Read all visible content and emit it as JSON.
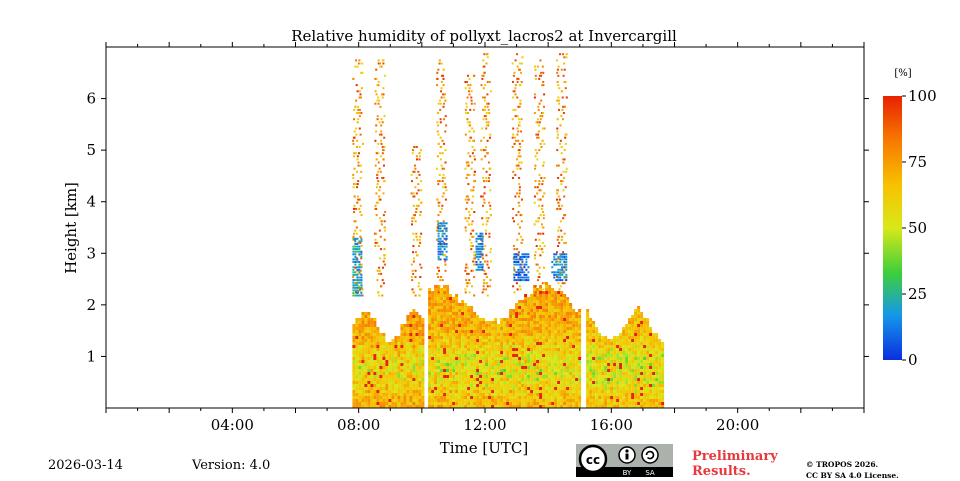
{
  "chart_data": {
    "type": "heatmap",
    "title": "Relative humidity of pollyxt_lacros2 at Invercargill",
    "xlabel": "Time [UTC]",
    "ylabel": "Height [km]",
    "xlim": [
      0,
      24
    ],
    "ylim": [
      0,
      7
    ],
    "x_ticks": [
      4,
      8,
      12,
      16,
      20
    ],
    "x_tick_labels": [
      "04:00",
      "08:00",
      "12:00",
      "16:00",
      "20:00"
    ],
    "y_ticks": [
      1,
      2,
      3,
      4,
      5,
      6
    ],
    "y_tick_labels": [
      "1",
      "2",
      "3",
      "4",
      "5",
      "6"
    ],
    "colorbar": {
      "label": "[%]",
      "range": [
        0,
        100
      ],
      "ticks": [
        0,
        25,
        50,
        75,
        100
      ],
      "tick_labels": [
        "0",
        "25",
        "50",
        "75",
        "100"
      ],
      "colors": [
        "#0a2ee0",
        "#1598e8",
        "#3ecf3a",
        "#d8e81a",
        "#f7c200",
        "#f77a00",
        "#e82200"
      ]
    },
    "data_regions": [
      {
        "t_start": 7.8,
        "t_end": 10.0,
        "top_km": 2.0,
        "rh": 75
      },
      {
        "t_start": 10.2,
        "t_end": 15.0,
        "top_km": 2.5,
        "rh": 72
      },
      {
        "t_start": 15.2,
        "t_end": 17.6,
        "top_km": 2.0,
        "rh": 70
      }
    ],
    "cloud_streaks": [
      {
        "t": 7.95,
        "top_km": 6.8
      },
      {
        "t": 8.65,
        "top_km": 6.8
      },
      {
        "t": 9.8,
        "top_km": 5.1
      },
      {
        "t": 10.6,
        "top_km": 6.8
      },
      {
        "t": 11.5,
        "top_km": 6.5
      },
      {
        "t": 12.0,
        "top_km": 6.9
      },
      {
        "t": 13.0,
        "top_km": 6.9
      },
      {
        "t": 13.7,
        "top_km": 6.8
      },
      {
        "t": 14.4,
        "top_km": 6.9
      }
    ],
    "moist_layers": [
      {
        "t_start": 7.8,
        "t_end": 8.1,
        "base_km": 2.2,
        "top_km": 3.3,
        "rh": 20
      },
      {
        "t_start": 12.9,
        "t_end": 13.4,
        "base_km": 2.5,
        "top_km": 3.0,
        "rh": 10
      },
      {
        "t_start": 14.1,
        "t_end": 14.6,
        "base_km": 2.5,
        "top_km": 3.0,
        "rh": 15
      },
      {
        "t_start": 10.5,
        "t_end": 10.8,
        "base_km": 2.9,
        "top_km": 3.6,
        "rh": 15
      },
      {
        "t_start": 11.7,
        "t_end": 11.9,
        "base_km": 2.7,
        "top_km": 3.4,
        "rh": 15
      }
    ]
  },
  "footer": {
    "date": "2026-03-14",
    "version": "Version: 4.0",
    "preliminary_line1": "Preliminary",
    "preliminary_line2": "Results.",
    "copyright_line1": "© TROPOS 2026.",
    "copyright_line2": "CC BY SA 4.0 License.",
    "cc_label": "cc",
    "by_label": "BY",
    "sa_label": "SA"
  }
}
